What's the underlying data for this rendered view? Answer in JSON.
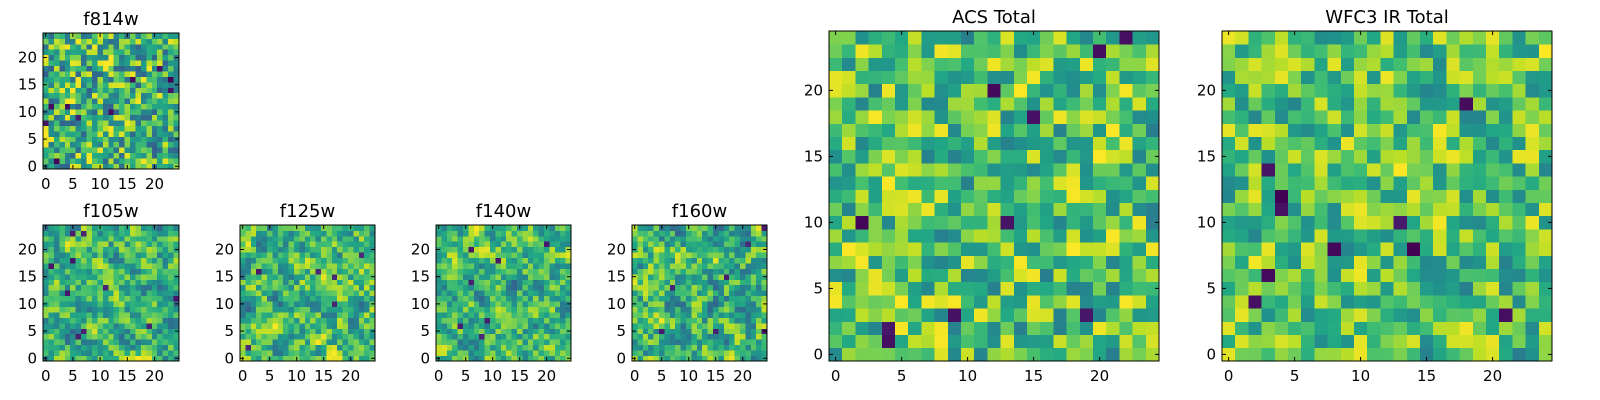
{
  "chart_data": [
    {
      "type": "heatmap",
      "title": "f814w",
      "xlabel": "",
      "ylabel": "",
      "nx": 25,
      "ny": 25,
      "xlim": [
        -0.5,
        24.5
      ],
      "ylim": [
        -0.5,
        24.5
      ],
      "xticks": [
        0,
        5,
        10,
        15,
        20
      ],
      "yticks": [
        0,
        5,
        10,
        15,
        20
      ],
      "colormap": "viridis",
      "pattern": {
        "seed": 814,
        "smooth": 0.1,
        "dark_count": 10,
        "low": 0.3,
        "high": 1.0,
        "dark_value": 0.0
      }
    },
    {
      "type": "heatmap",
      "title": "f105w",
      "xlabel": "",
      "ylabel": "",
      "nx": 25,
      "ny": 25,
      "xlim": [
        -0.5,
        24.5
      ],
      "ylim": [
        -0.5,
        24.5
      ],
      "xticks": [
        0,
        5,
        10,
        15,
        20
      ],
      "yticks": [
        0,
        5,
        10,
        15,
        20
      ],
      "colormap": "viridis",
      "pattern": {
        "seed": 105,
        "smooth": 0.55,
        "dark_count": 10,
        "low": 0.32,
        "high": 1.0,
        "dark_value": 0.05
      }
    },
    {
      "type": "heatmap",
      "title": "f125w",
      "xlabel": "",
      "ylabel": "",
      "nx": 25,
      "ny": 25,
      "xlim": [
        -0.5,
        24.5
      ],
      "ylim": [
        -0.5,
        24.5
      ],
      "xticks": [
        0,
        5,
        10,
        15,
        20
      ],
      "yticks": [
        0,
        5,
        10,
        15,
        20
      ],
      "colormap": "viridis",
      "pattern": {
        "seed": 125,
        "smooth": 0.55,
        "dark_count": 6,
        "low": 0.32,
        "high": 1.0,
        "dark_value": 0.05
      }
    },
    {
      "type": "heatmap",
      "title": "f140w",
      "xlabel": "",
      "ylabel": "",
      "nx": 25,
      "ny": 25,
      "xlim": [
        -0.5,
        24.5
      ],
      "ylim": [
        -0.5,
        24.5
      ],
      "xticks": [
        0,
        5,
        10,
        15,
        20
      ],
      "yticks": [
        0,
        5,
        10,
        15,
        20
      ],
      "colormap": "viridis",
      "pattern": {
        "seed": 140,
        "smooth": 0.55,
        "dark_count": 7,
        "low": 0.32,
        "high": 1.0,
        "dark_value": 0.05
      }
    },
    {
      "type": "heatmap",
      "title": "f160w",
      "xlabel": "",
      "ylabel": "",
      "nx": 25,
      "ny": 25,
      "xlim": [
        -0.5,
        24.5
      ],
      "ylim": [
        -0.5,
        24.5
      ],
      "xticks": [
        0,
        5,
        10,
        15,
        20
      ],
      "yticks": [
        0,
        5,
        10,
        15,
        20
      ],
      "colormap": "viridis",
      "pattern": {
        "seed": 160,
        "smooth": 0.55,
        "dark_count": 7,
        "low": 0.32,
        "high": 1.0,
        "dark_value": 0.05
      }
    },
    {
      "type": "heatmap",
      "title": "ACS Total",
      "xlabel": "",
      "ylabel": "",
      "nx": 25,
      "ny": 25,
      "xlim": [
        -0.5,
        24.5
      ],
      "ylim": [
        -0.5,
        24.5
      ],
      "xticks": [
        0,
        5,
        10,
        15,
        20
      ],
      "yticks": [
        0,
        5,
        10,
        15,
        20
      ],
      "colormap": "viridis",
      "pattern": {
        "seed": 901,
        "smooth": 0.1,
        "dark_count": 10,
        "low": 0.42,
        "high": 1.0,
        "dark_value": 0.0
      }
    },
    {
      "type": "heatmap",
      "title": "WFC3 IR Total",
      "xlabel": "",
      "ylabel": "",
      "nx": 25,
      "ny": 25,
      "xlim": [
        -0.5,
        24.5
      ],
      "ylim": [
        -0.5,
        24.5
      ],
      "xticks": [
        0,
        5,
        10,
        15,
        20
      ],
      "yticks": [
        0,
        5,
        10,
        15,
        20
      ],
      "colormap": "viridis",
      "pattern": {
        "seed": 902,
        "smooth": 0.35,
        "dark_count": 11,
        "low": 0.42,
        "high": 1.0,
        "dark_value": 0.0
      }
    }
  ]
}
